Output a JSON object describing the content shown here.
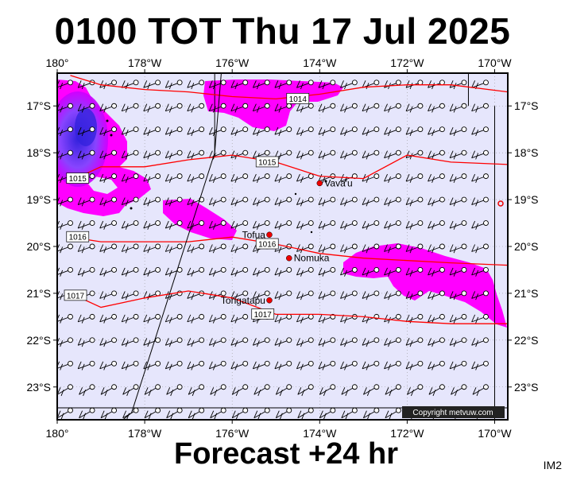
{
  "header": {
    "title": "0100 TOT Thu 17 Jul 2025"
  },
  "footer": {
    "forecast": "Forecast +24 hr",
    "tag": "IM2",
    "copyright": "Copyright metvuw.com"
  },
  "map": {
    "lon_range": [
      180,
      190.3
    ],
    "lat_range": [
      -16.3,
      -23.7
    ],
    "lon_ticks": [
      {
        "label": "180°",
        "lon": 180
      },
      {
        "label": "178°W",
        "lon": 182
      },
      {
        "label": "176°W",
        "lon": 184
      },
      {
        "label": "174°W",
        "lon": 186
      },
      {
        "label": "172°W",
        "lon": 188
      },
      {
        "label": "170°W",
        "lon": 190
      }
    ],
    "lat_ticks": [
      {
        "label": "17°S",
        "lat": -17
      },
      {
        "label": "18°S",
        "lat": -18
      },
      {
        "label": "19°S",
        "lat": -19
      },
      {
        "label": "20°S",
        "lat": -20
      },
      {
        "label": "21°S",
        "lat": -21
      },
      {
        "label": "22°S",
        "lat": -22
      },
      {
        "label": "23°S",
        "lat": -23
      }
    ],
    "colors": {
      "background": "#e6e6fc",
      "isobar": "#ff0000",
      "rain_light": "#ff00ff",
      "rain_mid": "#cc00ff",
      "rain_heavy": "#3322dd",
      "place": "#ee0000"
    },
    "isobars": [
      {
        "label": "1014",
        "label_lon": 185.5,
        "label_lat": -16.85,
        "points": [
          [
            180.3,
            -16.35
          ],
          [
            181,
            -16.55
          ],
          [
            182,
            -16.65
          ],
          [
            183,
            -16.7
          ],
          [
            184,
            -16.8
          ],
          [
            185,
            -16.85
          ],
          [
            186,
            -16.75
          ],
          [
            187,
            -16.6
          ],
          [
            188,
            -16.55
          ],
          [
            189,
            -16.55
          ],
          [
            190.3,
            -16.7
          ]
        ]
      },
      {
        "label": "1015",
        "label_lon": 184.8,
        "label_lat": -18.2,
        "points": [
          [
            180.3,
            -18.6
          ],
          [
            181,
            -18.3
          ],
          [
            182,
            -18.3
          ],
          [
            183,
            -18.15
          ],
          [
            184,
            -18.05
          ],
          [
            185,
            -18.2
          ],
          [
            186,
            -18.5
          ],
          [
            187,
            -18.55
          ],
          [
            188,
            -18.05
          ],
          [
            189,
            -18.2
          ],
          [
            190.3,
            -18.25
          ]
        ]
      },
      {
        "label": "1016",
        "label_lon": 184.8,
        "label_lat": -19.95,
        "points": [
          [
            180.3,
            -19.8
          ],
          [
            181,
            -19.9
          ],
          [
            182,
            -19.9
          ],
          [
            183,
            -19.9
          ],
          [
            184,
            -19.8
          ],
          [
            185,
            -19.95
          ],
          [
            186,
            -20.15
          ],
          [
            187,
            -20.25
          ],
          [
            188,
            -20.3
          ],
          [
            189,
            -20.35
          ],
          [
            190.3,
            -20.4
          ]
        ]
      },
      {
        "label": "1017",
        "label_lon": 184.7,
        "label_lat": -21.45,
        "points": [
          [
            180.3,
            -21.0
          ],
          [
            181,
            -21.3
          ],
          [
            182,
            -21.1
          ],
          [
            183,
            -20.95
          ],
          [
            184,
            -21.1
          ],
          [
            185,
            -21.45
          ],
          [
            186,
            -21.45
          ],
          [
            187,
            -21.5
          ],
          [
            188,
            -21.6
          ],
          [
            189,
            -21.65
          ],
          [
            190.3,
            -21.65
          ]
        ]
      }
    ],
    "places": [
      {
        "name": "Vava'u",
        "lon": 186.0,
        "lat": -18.65
      },
      {
        "name": "Tofua",
        "lon": 184.85,
        "lat": -19.75
      },
      {
        "name": "Nomuka",
        "lon": 185.3,
        "lat": -20.25
      },
      {
        "name": "Tongatapu",
        "lon": 184.85,
        "lat": -21.15
      }
    ],
    "date_line": {
      "points": [
        [
          183.6,
          -18.0
        ],
        [
          181.7,
          -23.55
        ]
      ]
    }
  }
}
